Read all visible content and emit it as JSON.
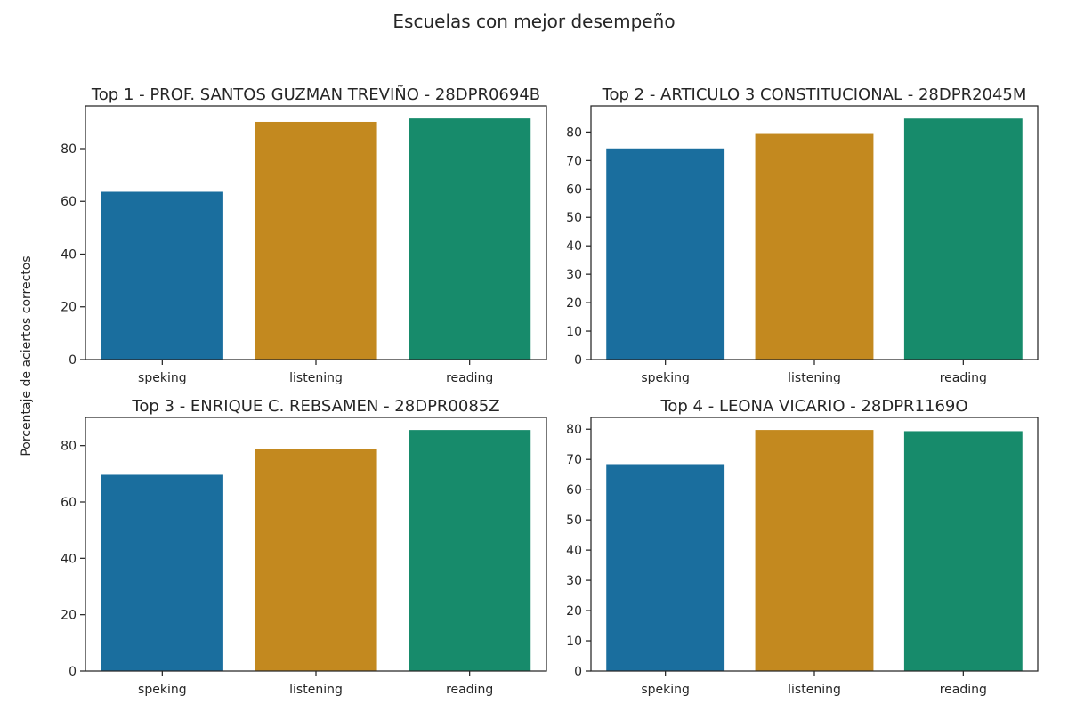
{
  "figure": {
    "title": "Escuelas con mejor desempeño",
    "ylabel": "Porcentaje de aciertos correctos"
  },
  "colors": {
    "bars": [
      "#1a6e9e",
      "#c3891f",
      "#178b6b"
    ],
    "axis": "#262626"
  },
  "chart_data": [
    {
      "type": "bar",
      "title": "Top  1 - PROF. SANTOS GUZMAN TREVIÑO - 28DPR0694B",
      "categories": [
        "speking",
        "listening",
        "reading"
      ],
      "values": [
        63.8,
        90.3,
        91.6
      ],
      "ylim": [
        0,
        96.2
      ],
      "yticks": [
        0,
        20,
        40,
        60,
        80
      ],
      "grid": false
    },
    {
      "type": "bar",
      "title": "Top  2 - ARTICULO 3 CONSTITUCIONAL - 28DPR2045M",
      "categories": [
        "speking",
        "listening",
        "reading"
      ],
      "values": [
        74.4,
        79.8,
        84.9
      ],
      "ylim": [
        0,
        89.2
      ],
      "yticks": [
        0,
        10,
        20,
        30,
        40,
        50,
        60,
        70,
        80
      ],
      "grid": false
    },
    {
      "type": "bar",
      "title": "Top  3 - ENRIQUE C. REBSAMEN - 28DPR0085Z",
      "categories": [
        "speking",
        "listening",
        "reading"
      ],
      "values": [
        69.8,
        79.0,
        85.7
      ],
      "ylim": [
        0,
        90.0
      ],
      "yticks": [
        0,
        20,
        40,
        60,
        80
      ],
      "grid": false
    },
    {
      "type": "bar",
      "title": "Top  4 - LEONA VICARIO - 28DPR1169O",
      "categories": [
        "speking",
        "listening",
        "reading"
      ],
      "values": [
        68.6,
        79.9,
        79.5
      ],
      "ylim": [
        0,
        83.9
      ],
      "yticks": [
        0,
        10,
        20,
        30,
        40,
        50,
        60,
        70,
        80
      ],
      "grid": false
    }
  ]
}
